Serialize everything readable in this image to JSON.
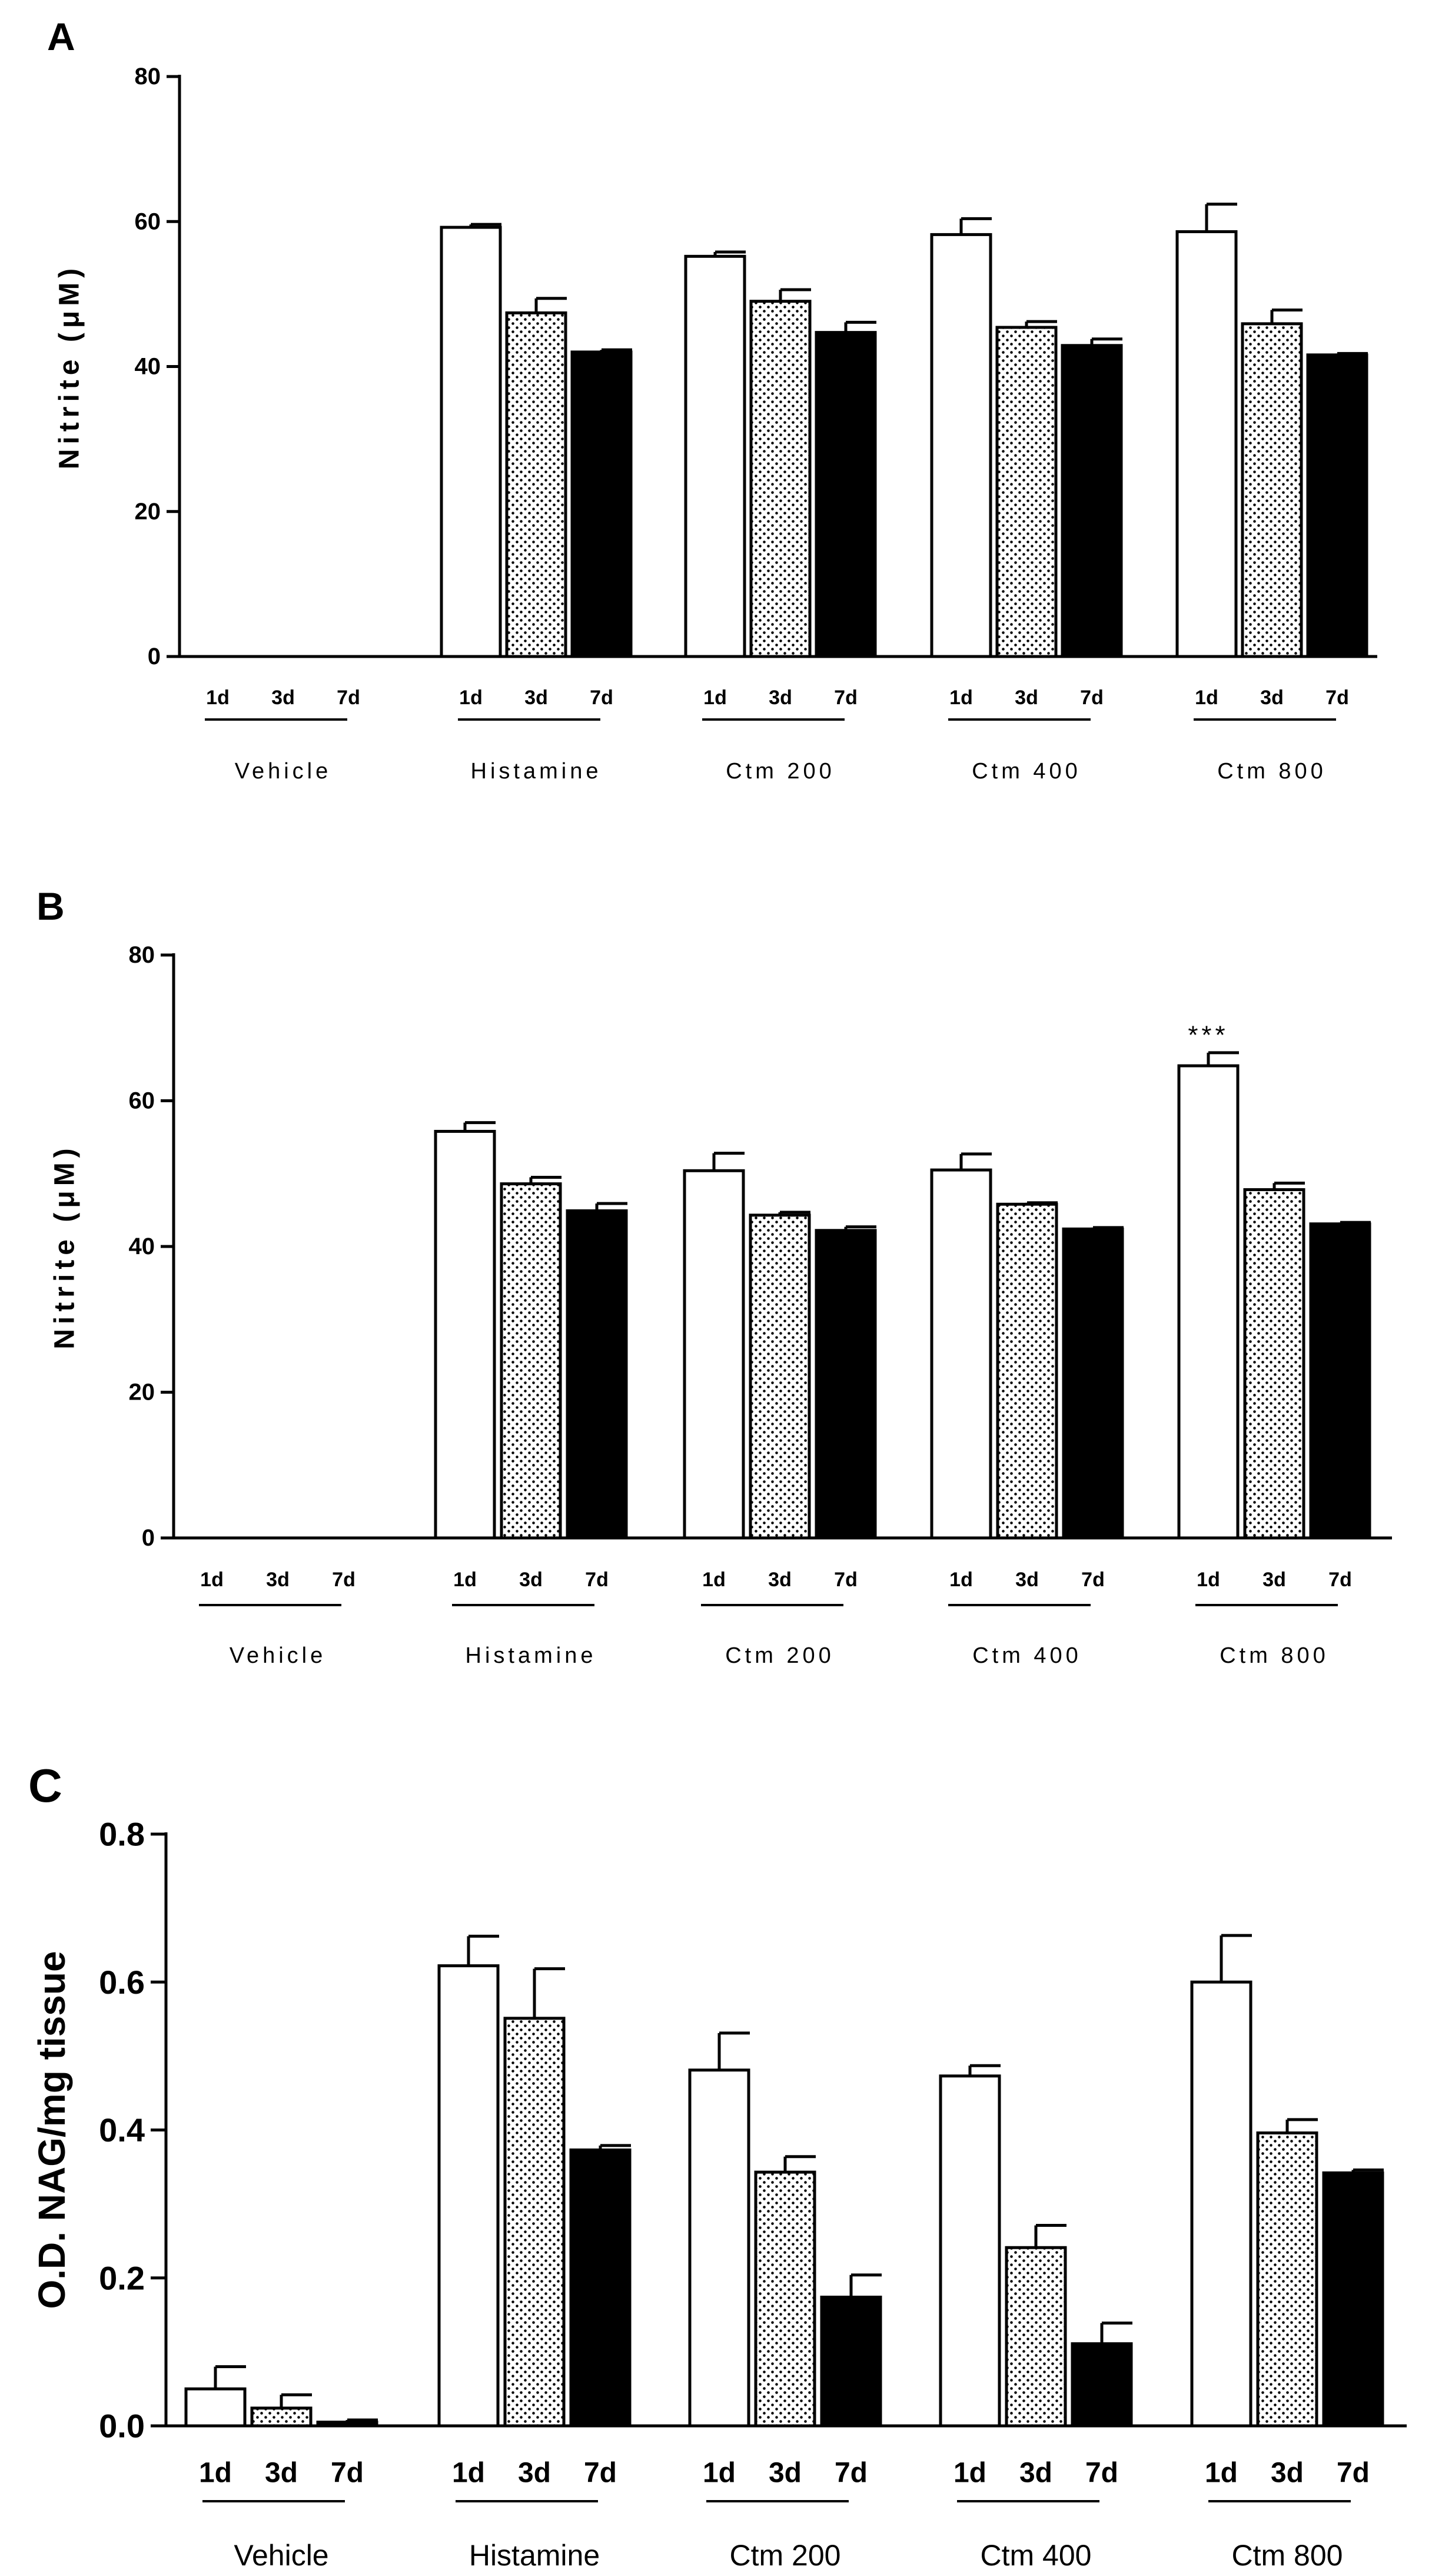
{
  "chart_data": [
    {
      "type": "bar",
      "panel": "A",
      "ylabel": "Nitrite (μM)",
      "ylim": [
        0,
        80
      ],
      "yticks": [
        "0",
        "20",
        "40",
        "60",
        "80"
      ],
      "groups": [
        "Vehicle",
        "Histamine",
        "Ctm 200",
        "Ctm 400",
        "Ctm 800"
      ],
      "timepoints": [
        "1d",
        "3d",
        "7d"
      ],
      "series": [
        {
          "name": "1d",
          "values": [
            0,
            59.2,
            55.2,
            58.2,
            58.6
          ],
          "errors": [
            0,
            0.4,
            0.6,
            2.2,
            3.8
          ]
        },
        {
          "name": "3d",
          "values": [
            0,
            47.4,
            49.0,
            45.4,
            45.9
          ],
          "errors": [
            0,
            2.0,
            1.6,
            0.8,
            1.9
          ]
        },
        {
          "name": "7d",
          "values": [
            0,
            42.0,
            44.7,
            42.9,
            41.6
          ],
          "errors": [
            0,
            0.3,
            1.4,
            0.9,
            0.2
          ]
        }
      ],
      "annotations": []
    },
    {
      "type": "bar",
      "panel": "B",
      "ylabel": "Nitrite (μM)",
      "ylim": [
        0,
        80
      ],
      "yticks": [
        "0",
        "20",
        "40",
        "60",
        "80"
      ],
      "groups": [
        "Vehicle",
        "Histamine",
        "Ctm 200",
        "Ctm 400",
        "Ctm 800"
      ],
      "timepoints": [
        "1d",
        "3d",
        "7d"
      ],
      "series": [
        {
          "name": "1d",
          "values": [
            0,
            55.8,
            50.4,
            50.5,
            64.8
          ],
          "errors": [
            0,
            1.2,
            2.4,
            2.2,
            1.8
          ]
        },
        {
          "name": "3d",
          "values": [
            0,
            48.6,
            44.3,
            45.8,
            47.8
          ],
          "errors": [
            0,
            0.9,
            0.4,
            0.2,
            0.9
          ]
        },
        {
          "name": "7d",
          "values": [
            0,
            44.9,
            42.2,
            42.4,
            43.1
          ],
          "errors": [
            0,
            1.0,
            0.5,
            0.2,
            0.2
          ]
        }
      ],
      "annotations": [
        {
          "group": "Ctm 800",
          "series": "1d",
          "text": "***"
        }
      ]
    },
    {
      "type": "bar",
      "panel": "C",
      "ylabel": "O.D. NAG/mg tissue",
      "ylim": [
        0,
        0.8
      ],
      "yticks": [
        "0.0",
        "0.2",
        "0.4",
        "0.6",
        "0.8"
      ],
      "groups": [
        "Vehicle",
        "Histamine",
        "Ctm 200",
        "Ctm 400",
        "Ctm 800"
      ],
      "timepoints": [
        "1d",
        "3d",
        "7d"
      ],
      "series": [
        {
          "name": "1d",
          "values": [
            0.05,
            0.622,
            0.481,
            0.473,
            0.6
          ],
          "errors": [
            0.03,
            0.04,
            0.05,
            0.014,
            0.063
          ]
        },
        {
          "name": "3d",
          "values": [
            0.024,
            0.551,
            0.343,
            0.241,
            0.396
          ],
          "errors": [
            0.018,
            0.067,
            0.021,
            0.03,
            0.018
          ]
        },
        {
          "name": "7d",
          "values": [
            0.005,
            0.373,
            0.174,
            0.111,
            0.342
          ],
          "errors": [
            0.003,
            0.006,
            0.03,
            0.028,
            0.004
          ]
        }
      ],
      "annotations": []
    }
  ],
  "patterns": {
    "1d": "white",
    "3d": "dotted",
    "7d": "black"
  }
}
